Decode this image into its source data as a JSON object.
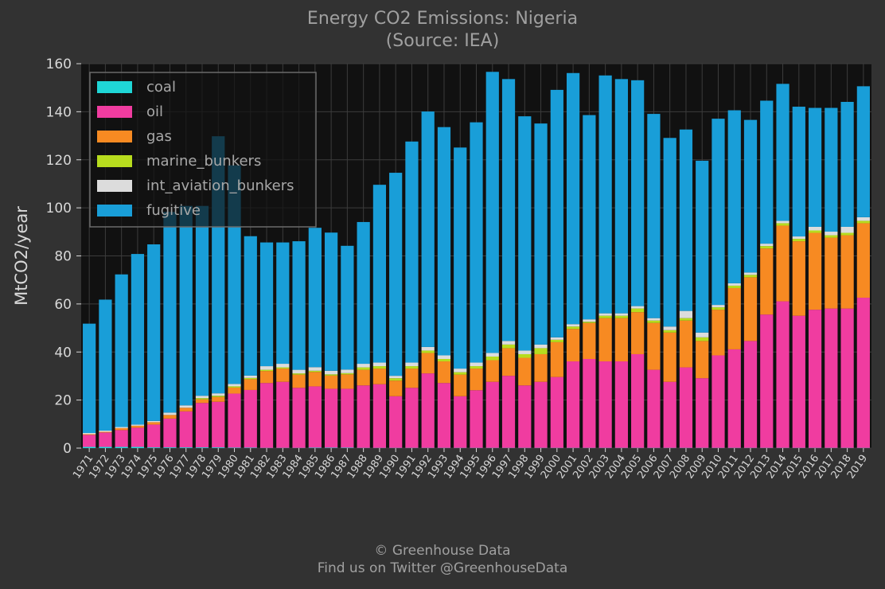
{
  "title": {
    "line1": "Energy CO2 Emissions: Nigeria",
    "line2": "(Source: IEA)"
  },
  "credit": {
    "line1": "© Greenhouse Data",
    "line2": "Find us on Twitter @GreenhouseData"
  },
  "colors": {
    "background": "#323232",
    "plot_bg": "#111111",
    "grid": "#3c3c3c",
    "coal": "#1fd6d6",
    "oil": "#f03ca0",
    "gas": "#f78a22",
    "marine_bunkers": "#b7dc1e",
    "int_aviation_bunkers": "#dcdcdc",
    "fugitive": "#199ed8"
  },
  "chart_data": {
    "type": "bar",
    "stacked": true,
    "ylabel": "MtCO2/year",
    "xlabel": "",
    "ylim": [
      0,
      160
    ],
    "yticks": [
      0,
      20,
      40,
      60,
      80,
      100,
      120,
      140,
      160
    ],
    "grid": true,
    "legend_position": "top-left",
    "categories": [
      "1971",
      "1972",
      "1973",
      "1974",
      "1975",
      "1976",
      "1977",
      "1978",
      "1979",
      "1980",
      "1981",
      "1982",
      "1983",
      "1984",
      "1985",
      "1986",
      "1987",
      "1988",
      "1989",
      "1990",
      "1991",
      "1992",
      "1993",
      "1994",
      "1995",
      "1996",
      "1997",
      "1998",
      "1999",
      "2000",
      "2001",
      "2002",
      "2003",
      "2004",
      "2005",
      "2006",
      "2007",
      "2008",
      "2009",
      "2010",
      "2011",
      "2012",
      "2013",
      "2014",
      "2015",
      "2016",
      "2017",
      "2018",
      "2019"
    ],
    "series": [
      {
        "name": "coal",
        "values": [
          0.5,
          0.5,
          0.5,
          0.5,
          0.3,
          0.3,
          0.3,
          0.3,
          0.3,
          0.2,
          0.2,
          0.1,
          0.1,
          0.1,
          0.2,
          0.2,
          0.2,
          0.1,
          0.1,
          0.1,
          0.1,
          0.1,
          0.1,
          0.1,
          0.1,
          0.1,
          0.1,
          0.1,
          0.1,
          0.1,
          0.1,
          0.1,
          0.1,
          0.1,
          0.1,
          0.1,
          0.1,
          0.1,
          0.1,
          0.1,
          0.1,
          0.1,
          0.1,
          0.1,
          0.1,
          0.1,
          0.1,
          0.1,
          0.1
        ]
      },
      {
        "name": "oil",
        "values": [
          5,
          6,
          7,
          8,
          9.5,
          12,
          15,
          18.5,
          19,
          22.5,
          24,
          27,
          27.5,
          25,
          25.5,
          24.5,
          24.5,
          26,
          26.5,
          21.5,
          25,
          31,
          27,
          21.5,
          24,
          27.5,
          30,
          26,
          27.5,
          29.5,
          36,
          37,
          36,
          36,
          39,
          32.5,
          27.5,
          33.5,
          29,
          38.5,
          41,
          44.5,
          55.5,
          61,
          55,
          57.5,
          58,
          58,
          62.5
        ]
      },
      {
        "name": "gas",
        "values": [
          0.3,
          0.3,
          0.8,
          0.8,
          1,
          1.5,
          1.5,
          1.5,
          2,
          2.5,
          4.5,
          5,
          5.5,
          5.5,
          6,
          5.5,
          6,
          6.5,
          6.5,
          6.5,
          8,
          8.5,
          9,
          9,
          9,
          9,
          11.5,
          11.5,
          11.5,
          14.5,
          13.5,
          15,
          18,
          18,
          17.5,
          19.5,
          20.5,
          19.5,
          15.5,
          19,
          25.5,
          26.5,
          27.5,
          31.5,
          31,
          32,
          29.5,
          30.5,
          31
        ]
      },
      {
        "name": "marine_bunkers",
        "values": [
          0,
          0,
          0,
          0,
          0,
          0,
          0,
          0.5,
          0.5,
          0.5,
          0.5,
          0.5,
          0.5,
          0.5,
          0.5,
          0.5,
          0.5,
          1,
          1,
          1,
          1,
          1,
          1,
          1,
          1,
          1.5,
          1.5,
          1.5,
          2.5,
          1,
          1,
          0.5,
          1,
          1,
          1.5,
          1,
          1,
          1,
          1.5,
          1,
          1,
          1,
          1,
          1,
          1,
          1,
          1,
          1,
          1
        ]
      },
      {
        "name": "int_aviation_bunkers",
        "values": [
          0.5,
          0.5,
          0.5,
          0.5,
          0.5,
          1,
          1,
          1,
          1,
          1,
          1,
          1.5,
          1.5,
          1.5,
          1.5,
          1.5,
          1.5,
          1.5,
          1.5,
          1,
          1.5,
          1.5,
          1.5,
          1.5,
          1.5,
          1.5,
          1.5,
          1.5,
          1.5,
          1,
          1,
          1,
          1,
          1,
          1,
          1,
          1.5,
          3,
          2,
          1,
          1,
          1,
          1,
          1,
          1,
          1.5,
          1.5,
          2.5,
          1.5
        ]
      },
      {
        "name": "fugitive",
        "values": [
          45.5,
          54.5,
          63.5,
          71,
          73.5,
          83.5,
          83,
          79,
          107,
          91,
          58,
          51.5,
          50.5,
          53.5,
          58,
          57.5,
          51.5,
          59,
          74,
          84.5,
          92,
          98,
          95,
          92,
          100,
          117,
          109,
          97.5,
          92,
          103,
          104.5,
          85,
          99,
          97.5,
          94,
          85,
          78.5,
          75.5,
          71.5,
          77.5,
          72,
          63.5,
          59.5,
          57,
          54,
          49.5,
          51.5,
          52,
          54.5
        ]
      }
    ]
  }
}
